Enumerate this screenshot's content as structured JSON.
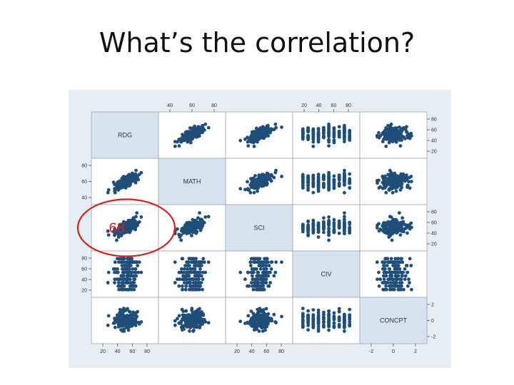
{
  "slide": {
    "title": "What’s the correlation?"
  },
  "chart_data": {
    "type": "scatter",
    "variables": [
      "RDG",
      "MATH",
      "SCI",
      "CIV",
      "CONCPT"
    ],
    "ticks": {
      "RDG": [
        "20",
        "40",
        "60",
        "80"
      ],
      "MATH": [
        "40",
        "60",
        "80"
      ],
      "SCI": [
        "20",
        "40",
        "60",
        "80"
      ],
      "CIV": [
        "20",
        "40",
        "60",
        "80"
      ],
      "CONCPT": [
        "-2",
        "0",
        "2"
      ]
    },
    "annotation": {
      "text": ".68",
      "row": "SCI",
      "column": "RDG",
      "circled": true
    },
    "colors": {
      "points": "#1f4e79",
      "annotation": "#d62020",
      "diagonal": "#d7e3ee",
      "panel_bg": "#e6edf3"
    }
  }
}
